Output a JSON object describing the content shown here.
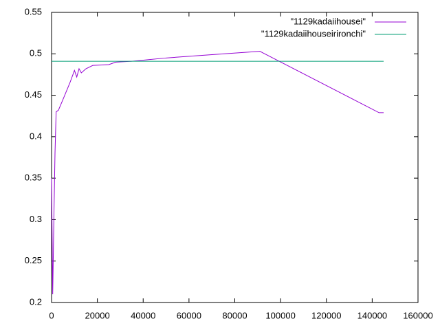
{
  "chart_data": {
    "type": "line",
    "series": [
      {
        "name": "\"1129kadaiihousei\"",
        "color": "#9400d3",
        "x": [
          0,
          500,
          1000,
          1500,
          2000,
          3000,
          5000,
          8000,
          10000,
          11000,
          12000,
          13000,
          15000,
          18000,
          25000,
          28000,
          35000,
          50000,
          70000,
          91000,
          143000,
          145000
        ],
        "values": [
          0.35,
          0.21,
          0.3,
          0.38,
          0.43,
          0.432,
          0.445,
          0.465,
          0.48,
          0.472,
          0.482,
          0.477,
          0.482,
          0.486,
          0.487,
          0.49,
          0.491,
          0.495,
          0.499,
          0.503,
          0.429,
          0.429
        ]
      },
      {
        "name": "\"1129kadaiihouseirironchi\"",
        "color": "#009e73",
        "x": [
          0,
          145000
        ],
        "values": [
          0.491,
          0.491
        ]
      }
    ],
    "xlim": [
      0,
      160000
    ],
    "xticks": [
      0,
      20000,
      40000,
      60000,
      80000,
      100000,
      120000,
      140000,
      160000
    ],
    "ylim": [
      0.2,
      0.55
    ],
    "yticks": [
      0.2,
      0.25,
      0.3,
      0.35,
      0.4,
      0.45,
      0.5,
      0.55
    ],
    "legend": "top-right"
  }
}
